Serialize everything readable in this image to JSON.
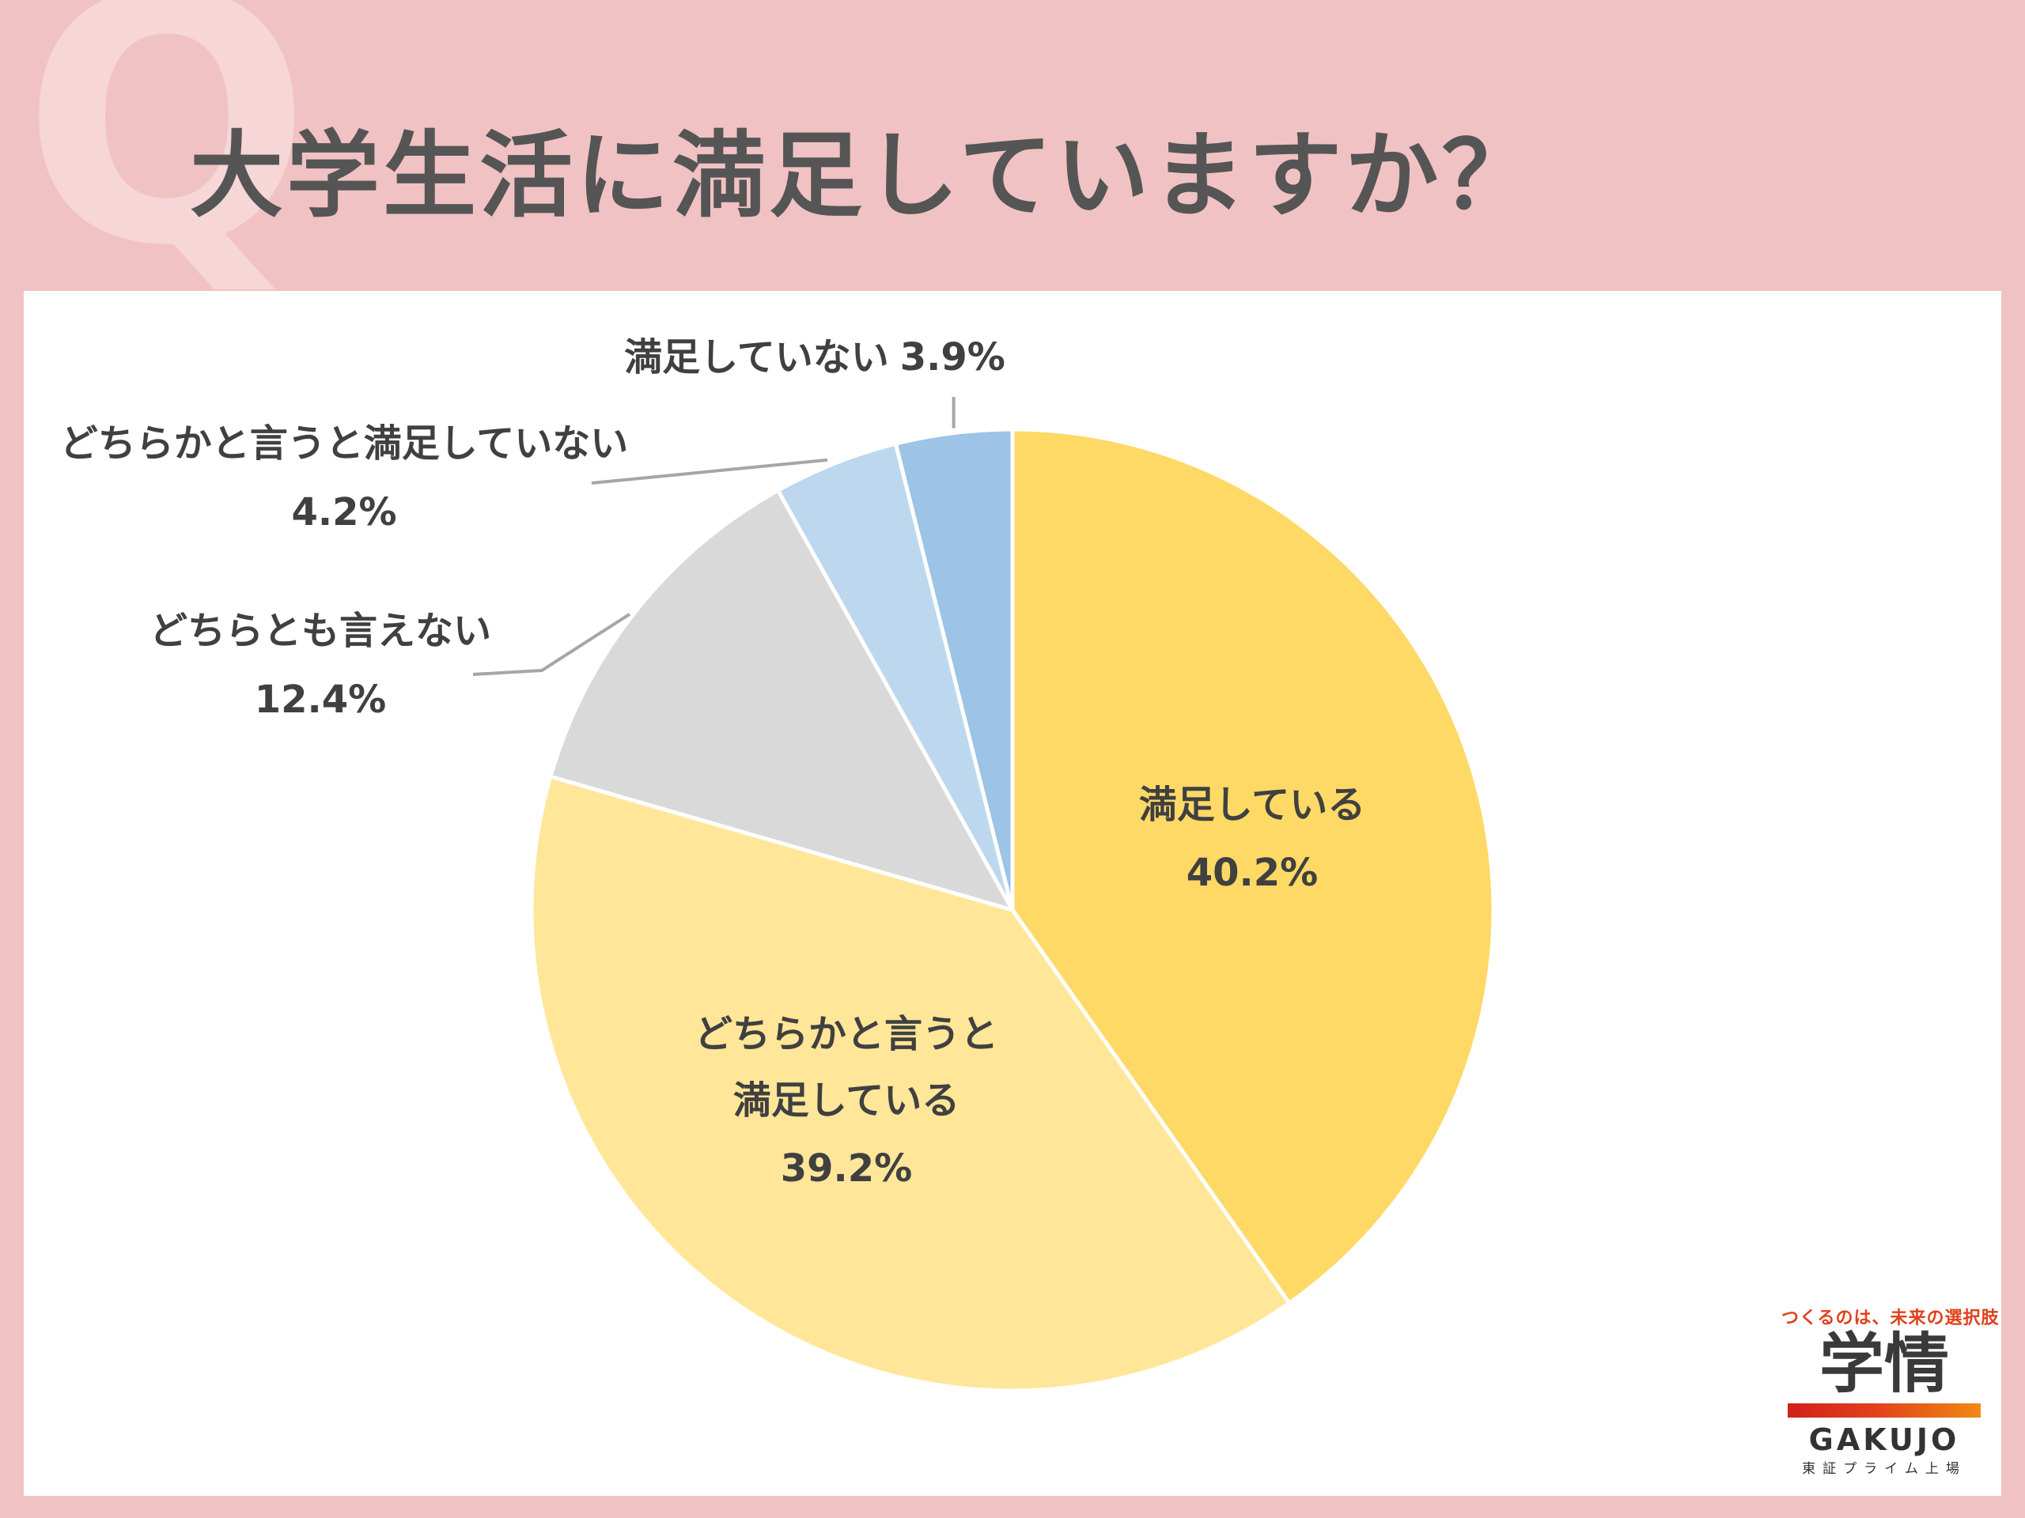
{
  "title": "大学生活に満足していますか？",
  "q_mark": "Q",
  "chart_data": {
    "type": "pie",
    "title": "",
    "slices": [
      {
        "label": "満足している",
        "value": 40.2,
        "display": "40.2%",
        "color": "#ffd966"
      },
      {
        "label": "どちらかと言うと満足している",
        "value": 39.2,
        "display": "39.2%",
        "color": "#ffe699"
      },
      {
        "label": "どちらとも言えない",
        "value": 12.4,
        "display": "12.4%",
        "color": "#d9d9d9"
      },
      {
        "label": "どちらかと言うと満足していない",
        "value": 4.2,
        "display": "4.2%",
        "color": "#bdd7ee"
      },
      {
        "label": "満足していない",
        "value": 3.9,
        "display": "3.9%",
        "color": "#9dc3e6"
      }
    ],
    "start_direction": "top",
    "direction": "clockwise"
  },
  "labels": {
    "s0_line1": "満足している",
    "s1_line1": "どちらかと言うと",
    "s1_line2": "満足している",
    "s2_line1": "どちらとも言えない",
    "s3_line1": "どちらかと言うと満足していない",
    "s4_line1": "満足していない"
  },
  "logo": {
    "tagline": "つくるのは、未来の選択肢",
    "kanji": "学情",
    "brand": "GAKUJO",
    "listed": "東証プライム上場"
  }
}
